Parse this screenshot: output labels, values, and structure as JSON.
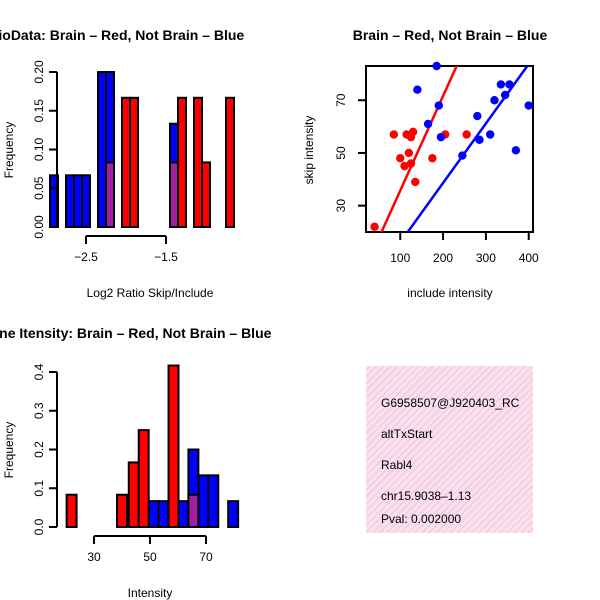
{
  "chart_data": [
    {
      "type": "bar",
      "panel": "ratio-histogram",
      "title": "RatioData: Brain – Red, Not Brain – Blue",
      "xlabel": "Log2 Ratio Skip/Include",
      "ylabel": "Frequency",
      "xticks": [
        -2.5,
        -1.5
      ],
      "xtick_labels": [
        "−2.5",
        "−1.5"
      ],
      "yticks": [
        0.0,
        0.05,
        0.1,
        0.15,
        0.2
      ],
      "ytick_labels": [
        "0.00",
        "0.05",
        "0.10",
        "0.15",
        "0.20"
      ],
      "xlim": [
        -2.75,
        -0.65
      ],
      "ylim": [
        0,
        0.2
      ],
      "bin_width": 0.1,
      "series": [
        {
          "name": "Not Brain",
          "color": "#0000ff",
          "bins": [
            [
              -2.9,
              0.0667
            ],
            [
              -2.7,
              0.0667
            ],
            [
              -2.6,
              0.0667
            ],
            [
              -2.5,
              0.0667
            ],
            [
              -2.3,
              0.2
            ],
            [
              -2.2,
              0.2
            ],
            [
              -1.9,
              0.0667
            ],
            [
              -1.4,
              0.1333
            ],
            [
              -1.3,
              0.0667
            ],
            [
              -1.1,
              0.0667
            ],
            [
              -1.0,
              0.0667
            ]
          ]
        },
        {
          "name": "Brain",
          "color": "#ff0000",
          "bins": [
            [
              -2.2,
              0.0833
            ],
            [
              -2.0,
              0.1667
            ],
            [
              -1.9,
              0.1667
            ],
            [
              -1.4,
              0.0833
            ],
            [
              -1.3,
              0.1667
            ],
            [
              -1.1,
              0.1667
            ],
            [
              -1.0,
              0.0833
            ],
            [
              -0.7,
              0.1667
            ]
          ]
        }
      ]
    },
    {
      "type": "scatter",
      "panel": "intensity-scatter",
      "title": "Brain – Red, Not Brain – Blue",
      "xlabel": "include intensity",
      "ylabel": "skip intensity",
      "xticks": [
        100,
        200,
        300,
        400
      ],
      "yticks": [
        30,
        50,
        70
      ],
      "xlim": [
        20,
        410
      ],
      "ylim": [
        20,
        83
      ],
      "series": [
        {
          "name": "Brain",
          "color": "#ff0000",
          "points": [
            [
              40,
              22
            ],
            [
              85,
              57
            ],
            [
              100,
              48
            ],
            [
              110,
              45
            ],
            [
              115,
              57
            ],
            [
              120,
              50
            ],
            [
              125,
              46
            ],
            [
              125,
              56
            ],
            [
              130,
              58
            ],
            [
              135,
              39
            ],
            [
              175,
              48
            ],
            [
              205,
              57
            ],
            [
              255,
              57
            ]
          ],
          "fit": [
            [
              20,
              7
            ],
            [
              410,
              147
            ]
          ]
        },
        {
          "name": "Not Brain",
          "color": "#0000ff",
          "points": [
            [
              140,
              74
            ],
            [
              165,
              61
            ],
            [
              185,
              83
            ],
            [
              190,
              68
            ],
            [
              195,
              56
            ],
            [
              245,
              49
            ],
            [
              280,
              64
            ],
            [
              285,
              55
            ],
            [
              310,
              57
            ],
            [
              320,
              70
            ],
            [
              335,
              76
            ],
            [
              345,
              72
            ],
            [
              355,
              76
            ],
            [
              370,
              51
            ],
            [
              400,
              68
            ]
          ],
          "fit": [
            [
              20,
              -2
            ],
            [
              410,
              86
            ]
          ]
        }
      ]
    },
    {
      "type": "bar",
      "panel": "intensity-histogram",
      "title": "Exon Line Itensity: Brain – Red, Not Brain – Blue",
      "xlabel": "Intensity",
      "ylabel": "Frequency",
      "xticks": [
        30,
        50,
        70
      ],
      "yticks": [
        0.0,
        0.1,
        0.2,
        0.3,
        0.4
      ],
      "ytick_labels": [
        "0.0",
        "0.1",
        "0.2",
        "0.3",
        "0.4"
      ],
      "xlim": [
        20,
        80
      ],
      "ylim": [
        0,
        0.4
      ],
      "bin_width": 3.56,
      "series": [
        {
          "name": "Not Brain",
          "color": "#0000ff",
          "bins": [
            [
              47.75,
              0.0667
            ],
            [
              51.3,
              0.0667
            ],
            [
              54.8,
              0.0667
            ],
            [
              58.4,
              0.0667
            ],
            [
              61.9,
              0.0667
            ],
            [
              65.5,
              0.2
            ],
            [
              69.1,
              0.1333
            ],
            [
              72.6,
              0.1333
            ],
            [
              79.7,
              0.0667
            ]
          ]
        },
        {
          "name": "Brain",
          "color": "#ff0000",
          "bins": [
            [
              22,
              0.0833
            ],
            [
              40,
              0.0833
            ],
            [
              44.2,
              0.1667
            ],
            [
              47.75,
              0.25
            ],
            [
              58.4,
              0.4167
            ],
            [
              65.5,
              0.0833
            ]
          ]
        }
      ]
    }
  ],
  "info_box": {
    "probe_id": "G6958507@J920403_RC",
    "event_type": "altTxStart",
    "gene": "Rabl4",
    "location": "chr15.9038–1.13",
    "pval": "Pval: 0.002000",
    "pval_color": "#8b0000",
    "background": "#f8e0ee",
    "hatch": "#e8a8cc"
  },
  "overlap_color": "#a020a0"
}
